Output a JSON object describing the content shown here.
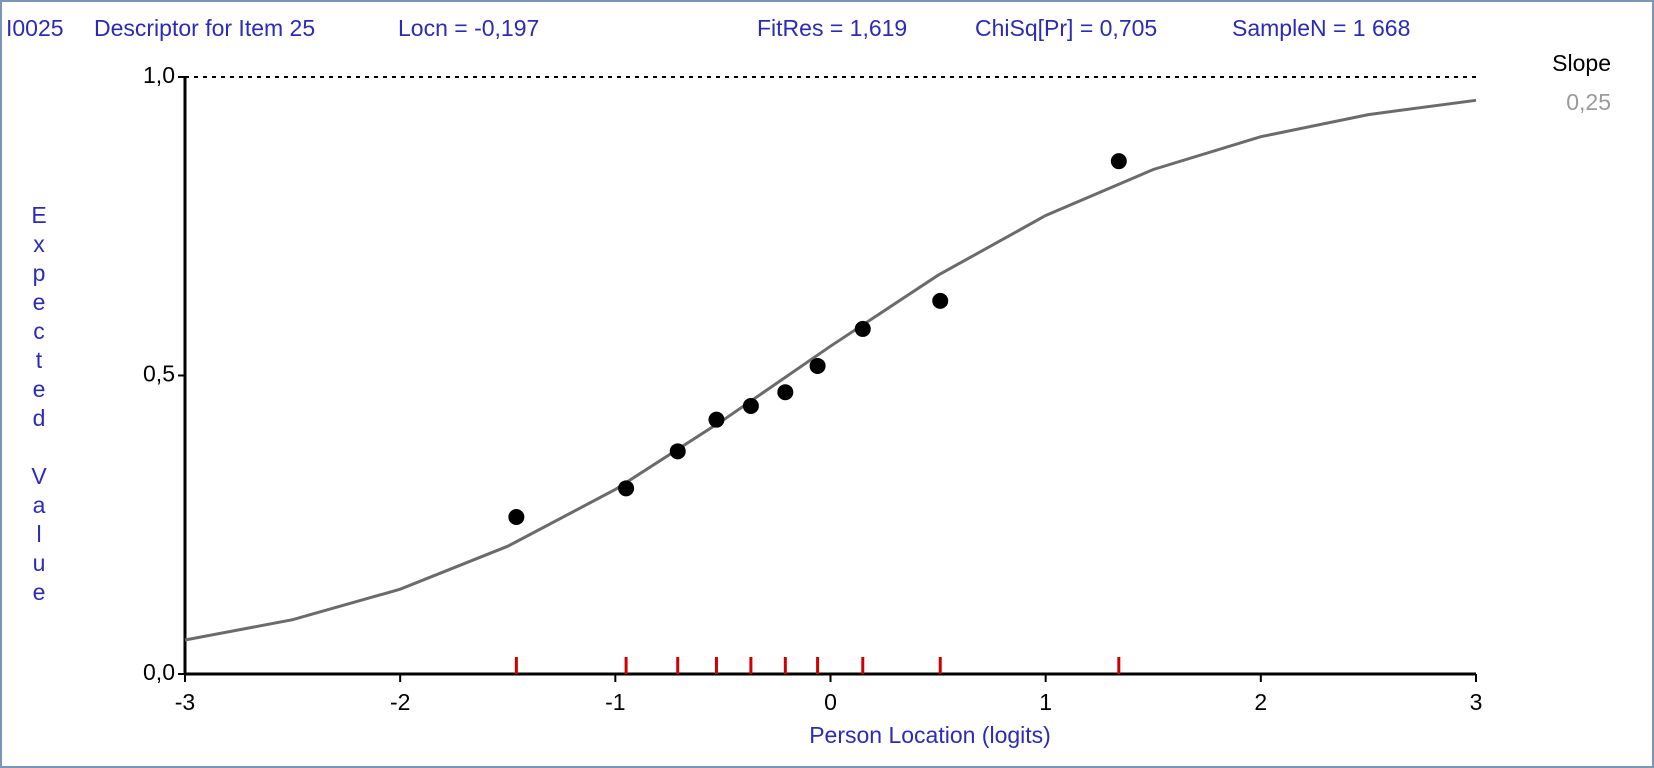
{
  "header": {
    "item": "I0025",
    "descriptor": "Descriptor for Item 25",
    "location": "Locn = -0,197",
    "fit_residual": "FitRes = 1,619",
    "chi_square": "ChiSq[Pr] = 0,705",
    "sample_size": "SampleN = 1 668"
  },
  "slope": {
    "label": "Slope",
    "value": "0,25"
  },
  "chart_data": {
    "type": "scatter",
    "x_label": "Person Location (logits)",
    "y_label": "Expected Value",
    "x": [
      -1.46,
      -0.95,
      -0.71,
      -0.53,
      -0.37,
      -0.21,
      -0.06,
      0.15,
      0.51,
      1.34
    ],
    "values": [
      0.263,
      0.311,
      0.373,
      0.426,
      0.449,
      0.472,
      0.516,
      0.578,
      0.625,
      0.859
    ],
    "color": "#000000",
    "tick_color": "#d00000",
    "curve": {
      "color": "#6b6b6b",
      "x": [
        -3,
        -2.5,
        -2,
        -1.5,
        -1,
        -0.5,
        0,
        0.5,
        1,
        1.5,
        2,
        2.5,
        3
      ],
      "values": [
        0.057,
        0.091,
        0.142,
        0.214,
        0.309,
        0.425,
        0.549,
        0.668,
        0.768,
        0.845,
        0.9,
        0.937,
        0.961
      ]
    },
    "xlim": [
      -3,
      3
    ],
    "xticks": [
      -3,
      -2,
      -1,
      0,
      1,
      2,
      3
    ],
    "ylim": [
      0,
      1
    ],
    "yticks": [
      {
        "value": 0,
        "label": "0,0"
      },
      {
        "value": 0.5,
        "label": "0,5"
      },
      {
        "value": 1,
        "label": "1,0"
      }
    ]
  }
}
